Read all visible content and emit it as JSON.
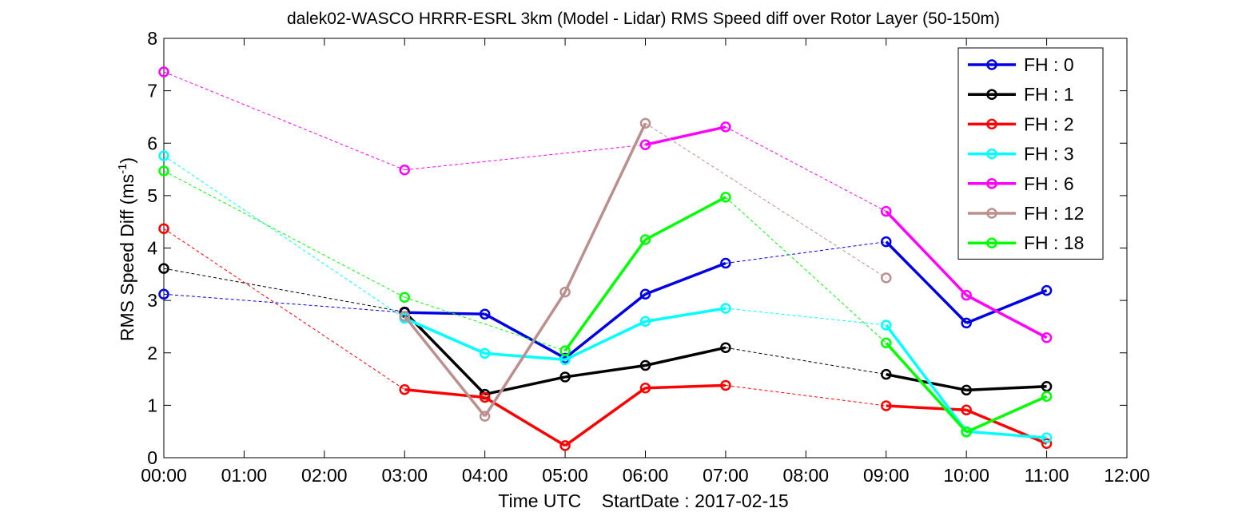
{
  "chart_data": {
    "type": "line",
    "title": "dalek02-WASCO HRRR-ESRL 3km (Model - Lidar) RMS Speed diff over Rotor Layer (50-150m)",
    "xlabel": "Time UTC    StartDate : 2017-02-15",
    "ylabel": "RMS Speed Diff (ms",
    "ylabel_sup": "-1",
    "ylabel_close": ")",
    "xlim": [
      0,
      12
    ],
    "ylim": [
      0,
      8
    ],
    "x_ticks": [
      0,
      1,
      2,
      3,
      4,
      5,
      6,
      7,
      8,
      9,
      10,
      11,
      12
    ],
    "x_tick_labels": [
      "00:00",
      "01:00",
      "02:00",
      "03:00",
      "04:00",
      "05:00",
      "06:00",
      "07:00",
      "08:00",
      "09:00",
      "10:00",
      "11:00",
      "12:00"
    ],
    "y_ticks": [
      0,
      1,
      2,
      3,
      4,
      5,
      6,
      7,
      8
    ],
    "y_tick_labels": [
      "0",
      "1",
      "2",
      "3",
      "4",
      "5",
      "6",
      "7",
      "8"
    ],
    "grid": false,
    "legend_position": "top-right",
    "series": [
      {
        "name": "FH : 0",
        "color": "#0000e6",
        "x": [
          0,
          3,
          4,
          5,
          6,
          7,
          9,
          10,
          11
        ],
        "y": [
          3.12,
          2.77,
          2.74,
          1.9,
          3.12,
          3.71,
          4.12,
          2.57,
          3.19
        ]
      },
      {
        "name": "FH : 1",
        "color": "#000000",
        "x": [
          0,
          3,
          4,
          5,
          6,
          7,
          9,
          10,
          11
        ],
        "y": [
          3.61,
          2.78,
          1.21,
          1.54,
          1.76,
          2.1,
          1.59,
          1.29,
          1.36
        ]
      },
      {
        "name": "FH : 2",
        "color": "#ff0000",
        "x": [
          0,
          3,
          4,
          5,
          6,
          7,
          9,
          10,
          11
        ],
        "y": [
          4.37,
          1.3,
          1.15,
          0.23,
          1.33,
          1.38,
          0.99,
          0.91,
          0.27
        ]
      },
      {
        "name": "FH : 3",
        "color": "#00ffff",
        "x": [
          0,
          3,
          4,
          5,
          6,
          7,
          9,
          10,
          11
        ],
        "y": [
          5.76,
          2.66,
          1.99,
          1.87,
          2.6,
          2.85,
          2.53,
          0.5,
          0.38
        ]
      },
      {
        "name": "FH : 6",
        "color": "#ff00ff",
        "x": [
          0,
          3,
          6,
          7,
          9,
          10,
          11
        ],
        "y": [
          7.36,
          5.49,
          5.97,
          6.31,
          4.7,
          3.1,
          2.29
        ]
      },
      {
        "name": "FH : 12",
        "color": "#bc8f8f",
        "x": [
          3,
          4,
          5,
          6,
          9
        ],
        "y": [
          2.7,
          0.79,
          3.16,
          6.38,
          3.43
        ]
      },
      {
        "name": "FH : 18",
        "color": "#00ff00",
        "x": [
          0,
          3,
          5,
          6,
          7,
          9,
          10,
          11
        ],
        "y": [
          5.47,
          3.06,
          2.04,
          4.16,
          4.97,
          2.19,
          0.49,
          1.17
        ]
      }
    ]
  }
}
